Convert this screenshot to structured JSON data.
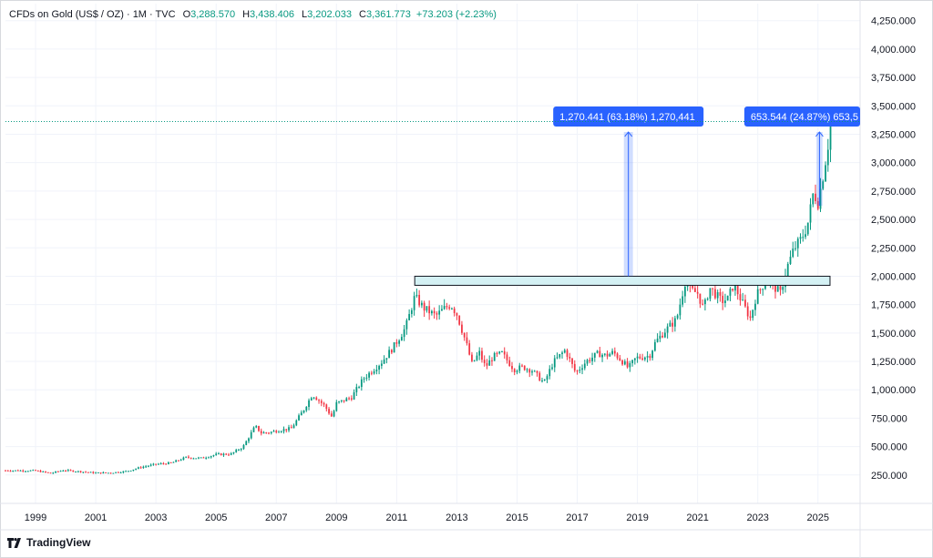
{
  "header": {
    "symbol": "CFDs on Gold (US$ / OZ) · 1M · TVC",
    "open_label": "O",
    "open": "3,288.570",
    "high_label": "H",
    "high": "3,438.406",
    "low_label": "L",
    "low": "3,202.033",
    "close_label": "C",
    "close": "3,361.773",
    "change": "+73.203 (+2.23%)"
  },
  "branding": {
    "name": "TradingView"
  },
  "colors": {
    "up": "#089981",
    "down": "#f23645",
    "accent": "#2962ff",
    "band": "#d4f1f4"
  },
  "chart_data": {
    "type": "candlestick",
    "y_axis": {
      "position": "right",
      "ticks": [
        "250.000",
        "500.000",
        "750.000",
        "1,000.000",
        "1,250.000",
        "1,500.000",
        "1,750.000",
        "2,000.000",
        "2,250.000",
        "2,500.000",
        "2,750.000",
        "3,000.000",
        "3,250.000",
        "3,500.000",
        "3,750.000",
        "4,000.000",
        "4,250.000"
      ]
    },
    "x_axis": {
      "ticks": [
        "1999",
        "2001",
        "2003",
        "2005",
        "2007",
        "2009",
        "2011",
        "2013",
        "2015",
        "2017",
        "2019",
        "2021",
        "2023",
        "2025"
      ]
    },
    "ylim": [
      0,
      4400
    ],
    "xlim": [
      1998.0,
      2026.4
    ],
    "price_line": 3361.773,
    "series_anchors": [
      [
        1998.0,
        290
      ],
      [
        1999.0,
        288
      ],
      [
        1999.5,
        265
      ],
      [
        1999.9,
        292
      ],
      [
        2000.5,
        280
      ],
      [
        2001.0,
        268
      ],
      [
        2001.5,
        270
      ],
      [
        2002.0,
        282
      ],
      [
        2002.5,
        318
      ],
      [
        2003.0,
        345
      ],
      [
        2003.5,
        355
      ],
      [
        2004.0,
        405
      ],
      [
        2004.5,
        398
      ],
      [
        2005.0,
        430
      ],
      [
        2005.5,
        435
      ],
      [
        2005.9,
        500
      ],
      [
        2006.3,
        680
      ],
      [
        2006.5,
        620
      ],
      [
        2006.8,
        625
      ],
      [
        2007.0,
        640
      ],
      [
        2007.5,
        660
      ],
      [
        2007.9,
        820
      ],
      [
        2008.2,
        960
      ],
      [
        2008.6,
        860
      ],
      [
        2008.85,
        760
      ],
      [
        2009.0,
        880
      ],
      [
        2009.5,
        935
      ],
      [
        2009.9,
        1100
      ],
      [
        2010.5,
        1245
      ],
      [
        2010.9,
        1380
      ],
      [
        2011.3,
        1550
      ],
      [
        2011.6,
        1820
      ],
      [
        2011.9,
        1720
      ],
      [
        2012.3,
        1650
      ],
      [
        2012.6,
        1720
      ],
      [
        2012.8,
        1750
      ],
      [
        2013.0,
        1665
      ],
      [
        2013.3,
        1420
      ],
      [
        2013.5,
        1230
      ],
      [
        2013.75,
        1325
      ],
      [
        2013.95,
        1200
      ],
      [
        2014.2,
        1290
      ],
      [
        2014.5,
        1320
      ],
      [
        2014.9,
        1180
      ],
      [
        2015.2,
        1200
      ],
      [
        2015.5,
        1170
      ],
      [
        2015.9,
        1060
      ],
      [
        2016.2,
        1240
      ],
      [
        2016.6,
        1350
      ],
      [
        2016.95,
        1150
      ],
      [
        2017.3,
        1250
      ],
      [
        2017.7,
        1320
      ],
      [
        2017.95,
        1300
      ],
      [
        2018.2,
        1330
      ],
      [
        2018.5,
        1250
      ],
      [
        2018.7,
        1190
      ],
      [
        2018.95,
        1280
      ],
      [
        2019.4,
        1300
      ],
      [
        2019.6,
        1420
      ],
      [
        2019.9,
        1515
      ],
      [
        2020.3,
        1620
      ],
      [
        2020.6,
        1970
      ],
      [
        2020.75,
        1880
      ],
      [
        2021.0,
        1850
      ],
      [
        2021.2,
        1710
      ],
      [
        2021.4,
        1900
      ],
      [
        2021.8,
        1780
      ],
      [
        2022.0,
        1800
      ],
      [
        2022.2,
        1930
      ],
      [
        2022.5,
        1760
      ],
      [
        2022.75,
        1630
      ],
      [
        2022.95,
        1830
      ],
      [
        2023.3,
        1980
      ],
      [
        2023.5,
        1920
      ],
      [
        2023.75,
        1850
      ],
      [
        2023.95,
        2060
      ],
      [
        2024.2,
        2240
      ],
      [
        2024.45,
        2330
      ],
      [
        2024.65,
        2450
      ],
      [
        2024.85,
        2740
      ],
      [
        2025.0,
        2650
      ],
      [
        2025.15,
        2860
      ],
      [
        2025.3,
        3100
      ],
      [
        2025.45,
        3361
      ]
    ],
    "resistance_zone": {
      "from_year": 2011.6,
      "to_year": 2025.4,
      "low": 1920,
      "high": 2000
    },
    "measures": [
      {
        "from_year": 2018.55,
        "to_year": 2018.85,
        "from": 2000,
        "to": 3270,
        "label": "1,270.441 (63.18%) 1,270,441"
      },
      {
        "from_year": 2024.95,
        "to_year": 2025.15,
        "from": 2620,
        "to": 3270,
        "label": "653.544 (24.87%) 653,5"
      }
    ]
  }
}
